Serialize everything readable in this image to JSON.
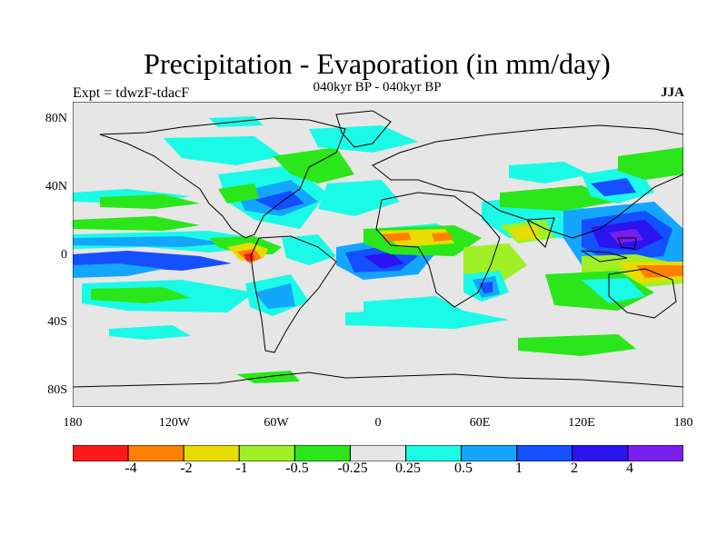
{
  "header": {
    "title": "Precipitation - Evaporation (in mm/day)",
    "subtitle": "040kyr BP - 040kyr BP",
    "left_label": "Expt = tdwzF-tdacF",
    "right_label": "JJA"
  },
  "axes": {
    "lat_ticks": [
      "80N",
      "40N",
      "0",
      "40S",
      "80S"
    ],
    "lon_ticks": [
      "180",
      "120W",
      "60W",
      "0",
      "60E",
      "120E",
      "180"
    ]
  },
  "colorbar": {
    "colors": [
      "#ff1a1a",
      "#ff8000",
      "#e6dc00",
      "#9ff026",
      "#2ae61a",
      "#e6e6e6",
      "#1afae6",
      "#14a6ff",
      "#1450ff",
      "#2a14f0",
      "#7a1ef0"
    ],
    "labels": [
      "-4",
      "-2",
      "-1",
      "-0.5",
      "-0.25",
      "0.25",
      "0.5",
      "1",
      "2",
      "4"
    ]
  }
}
